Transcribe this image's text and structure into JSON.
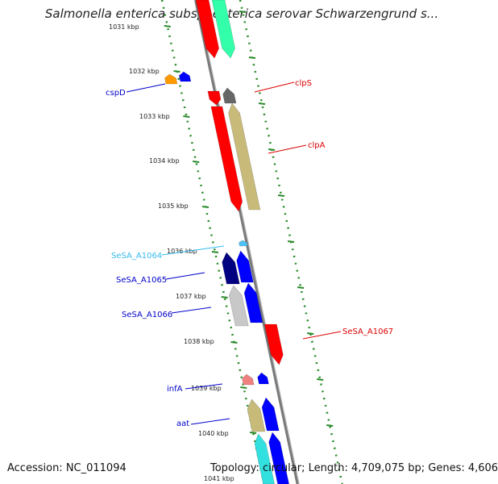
{
  "title": "Salmonella enterica subsp. enterica serovar Schwarzengrund s...",
  "footer": {
    "accession": "Accession: NC_011094",
    "topology": "Topology: circular; Length: 4,709,075 bp; Genes: 4,606"
  },
  "ticks": [
    "1031 kbp",
    "1032 kbp",
    "1033 kbp",
    "1034 kbp",
    "1035 kbp",
    "1036 kbp",
    "1037 kbp",
    "1038 kbp",
    "1039 kbp",
    "1040 kbp",
    "1041 kbp"
  ],
  "colors": {
    "backbone": "#7a7a7a",
    "dot_track": "#2a8a2a",
    "red": "#ff0000",
    "teal": "#33ffaa",
    "orange": "#ff9900",
    "blue": "#0000ff",
    "navy": "#000080",
    "gray_dark": "#666666",
    "khaki": "#c8bb7a",
    "silver": "#c8c8c8",
    "sky": "#4fc3f7",
    "pink": "#f08080",
    "cyan": "#33e0e0"
  },
  "genes": [
    {
      "name": "cspD",
      "color": "#0000cc"
    },
    {
      "name": "clpS",
      "color": "#dd0000"
    },
    {
      "name": "clpA",
      "color": "#dd0000"
    },
    {
      "name": "SeSA_A1064",
      "color": "#33bbee"
    },
    {
      "name": "SeSA_A1065",
      "color": "#0000cc"
    },
    {
      "name": "SeSA_A1066",
      "color": "#0000cc"
    },
    {
      "name": "SeSA_A1067",
      "color": "#dd0000"
    },
    {
      "name": "infA",
      "color": "#0000cc"
    },
    {
      "name": "aat",
      "color": "#0000cc"
    }
  ]
}
